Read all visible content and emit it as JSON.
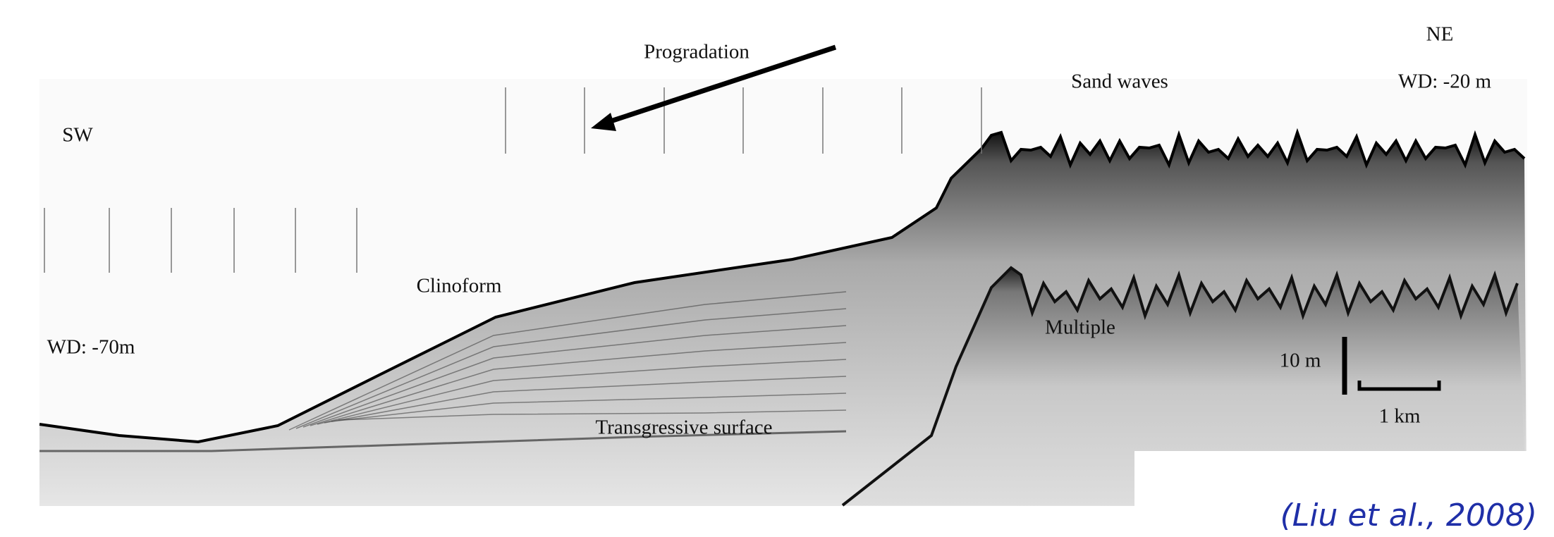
{
  "figure": {
    "direction_left": "SW",
    "direction_right": "NE",
    "arrow_label": "Progradation",
    "water_depth_left": "WD: -70m",
    "water_depth_right": "WD: -20 m",
    "feature_sand_waves": "Sand waves",
    "feature_clinoform": "Clinoform",
    "feature_multiple": "Multiple",
    "feature_transgressive": "Transgressive surface",
    "scale_vertical": "10 m",
    "scale_horizontal": "1 km"
  },
  "citation": "(Liu et al., 2008)"
}
